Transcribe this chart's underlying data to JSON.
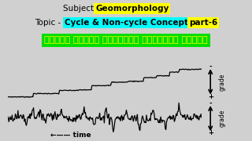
{
  "bg_color": "#c8c8c8",
  "title_bg": "#c8c8c8",
  "geo_text": "Geomorphology",
  "geo_bg": "#ffff00",
  "topic_plain": "Topic -",
  "topic_cyan_text": "Cycle & Non-cycle Concept",
  "topic_cyan_bg": "#00ffff",
  "topic_yellow_text": "part-6",
  "topic_yellow_bg": "#ffff00",
  "bengali_text": "হাকের অচক্র ভূমিরূপ বিবর্তন ধারণা",
  "bengali_bg": "#00dd00",
  "bengali_color": "#ffff00",
  "grade_label": "grade",
  "time_label": "←—— time",
  "chart_bg": "#d0d0d0"
}
